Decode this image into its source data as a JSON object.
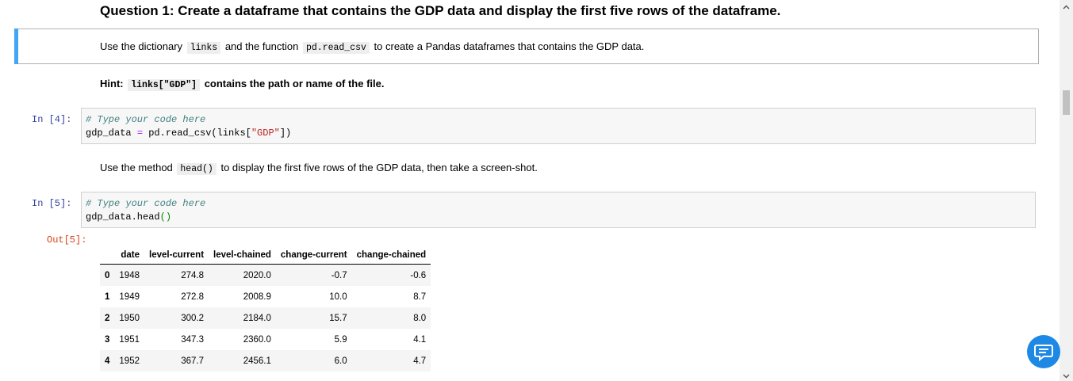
{
  "question": {
    "title": "Question 1: Create a dataframe that contains the GDP data and display the first five rows of the dataframe."
  },
  "instruction1": {
    "before": "Use the dictionary",
    "code1": "links",
    "middle": "and the function",
    "code2": "pd.read_csv",
    "after": "to create a Pandas dataframes that contains the GDP data."
  },
  "hint": {
    "label": "Hint:",
    "code": "links[\"GDP\"]",
    "text": "contains the path or name of the file."
  },
  "cell4": {
    "prompt": "In [4]:",
    "line1": "# Type your code here",
    "line2_a": "gdp_data",
    "line2_op": "=",
    "line2_b": "pd.read_csv(links[",
    "line2_str": "\"GDP\"",
    "line2_c": "])"
  },
  "instruction2": {
    "before": "Use the method",
    "code": "head()",
    "after": "to display the first five rows of the GDP data, then take a screen-shot."
  },
  "cell5": {
    "prompt": "In [5]:",
    "line1": "# Type your code here",
    "line2_a": "gdp_data.head",
    "line2_paren": "()",
    "out_prompt": "Out[5]:"
  },
  "table": {
    "headers": [
      "",
      "date",
      "level-current",
      "level-chained",
      "change-current",
      "change-chained"
    ],
    "rows": [
      [
        "0",
        "1948",
        "274.8",
        "2020.0",
        "-0.7",
        "-0.6"
      ],
      [
        "1",
        "1949",
        "272.8",
        "2008.9",
        "10.0",
        "8.7"
      ],
      [
        "2",
        "1950",
        "300.2",
        "2184.0",
        "15.7",
        "8.0"
      ],
      [
        "3",
        "1951",
        "347.3",
        "2360.0",
        "5.9",
        "4.1"
      ],
      [
        "4",
        "1952",
        "367.7",
        "2456.1",
        "6.0",
        "4.7"
      ]
    ]
  },
  "icons": {
    "scroll_up": "chevron-up-icon",
    "scroll_down": "chevron-down-icon",
    "feedback": "chat-feedback-icon"
  },
  "colors": {
    "accent": "#42a5f5",
    "in_prompt": "#303f9f",
    "out_prompt": "#d84315",
    "feedback_button": "#1e88e5"
  }
}
